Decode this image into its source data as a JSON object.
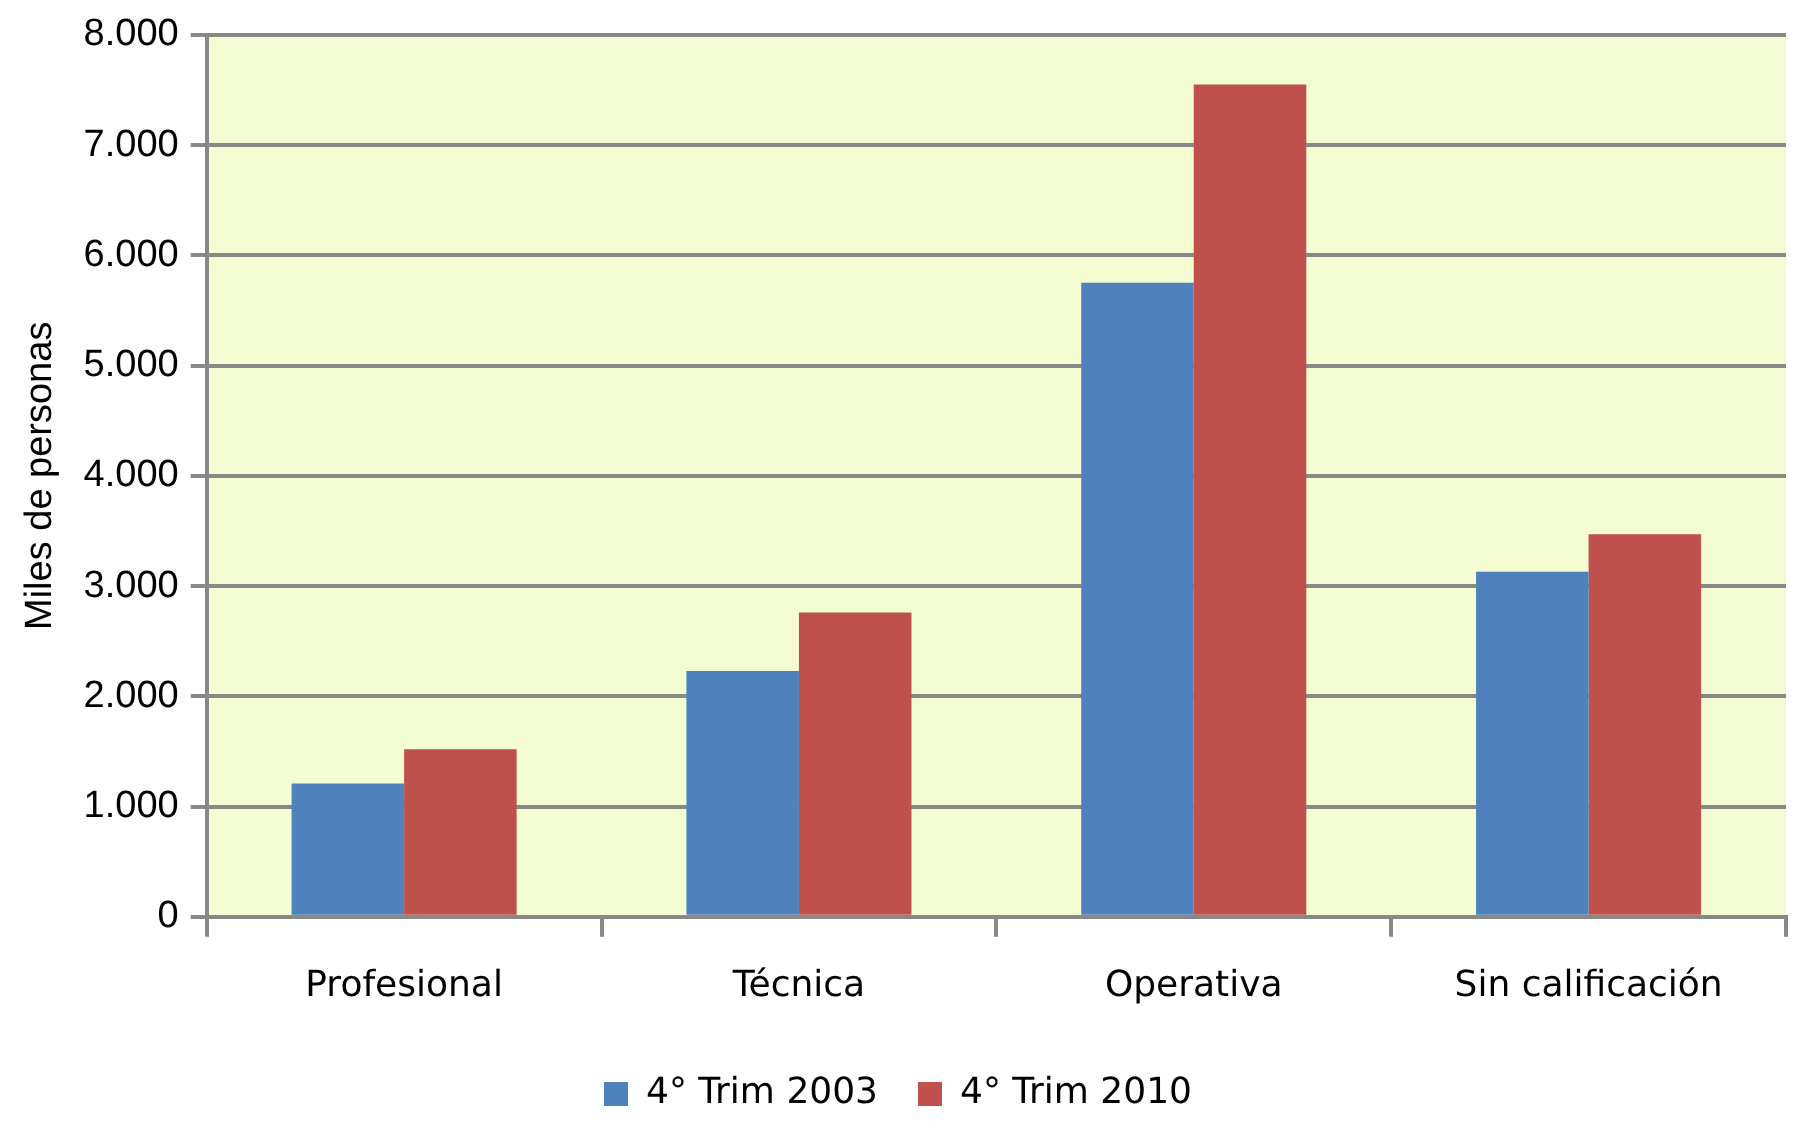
{
  "chart_data": {
    "type": "bar",
    "ylabel": "Miles de personas",
    "categories": [
      "Profesional",
      "Técnica",
      "Operativa",
      "Sin calificación"
    ],
    "series": [
      {
        "name": "4° Trim 2003",
        "color": "#4f81bd",
        "values": [
          1210,
          2230,
          5750,
          3130
        ]
      },
      {
        "name": "4° Trim 2010",
        "color": "#c0504d",
        "values": [
          1520,
          2760,
          7550,
          3470
        ]
      }
    ],
    "ylim": [
      0,
      8000
    ],
    "yticks": [
      {
        "value": 0,
        "label": "0"
      },
      {
        "value": 1000,
        "label": "1.000"
      },
      {
        "value": 2000,
        "label": "2.000"
      },
      {
        "value": 3000,
        "label": "3.000"
      },
      {
        "value": 4000,
        "label": "4.000"
      },
      {
        "value": 5000,
        "label": "5.000"
      },
      {
        "value": 6000,
        "label": "6.000"
      },
      {
        "value": 7000,
        "label": "7.000"
      },
      {
        "value": 8000,
        "label": "8.000"
      }
    ],
    "grid": "y",
    "legend": "bottom"
  }
}
